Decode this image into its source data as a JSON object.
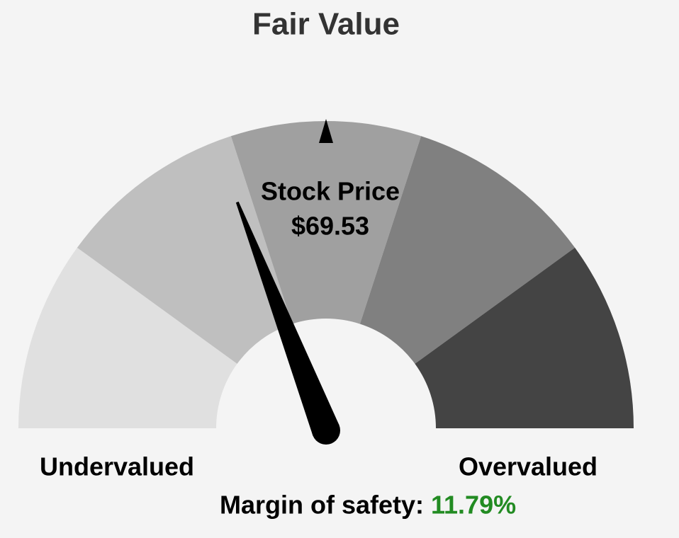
{
  "chart_data": {
    "type": "gauge",
    "title": "Fair Value",
    "center_label": [
      "Stock Price",
      "$69.53"
    ],
    "band_colors": [
      "#e0e0e0",
      "#bfbfbf",
      "#a0a0a0",
      "#808080",
      "#444444"
    ],
    "xlim": [
      50,
      -50
    ],
    "left_label": "Undervalued",
    "right_label": "Overvalued",
    "margin_of_safety": {
      "label": "Margin of safety:",
      "value": 11.79,
      "value_label": "11.79%",
      "color": "#228b22"
    }
  }
}
